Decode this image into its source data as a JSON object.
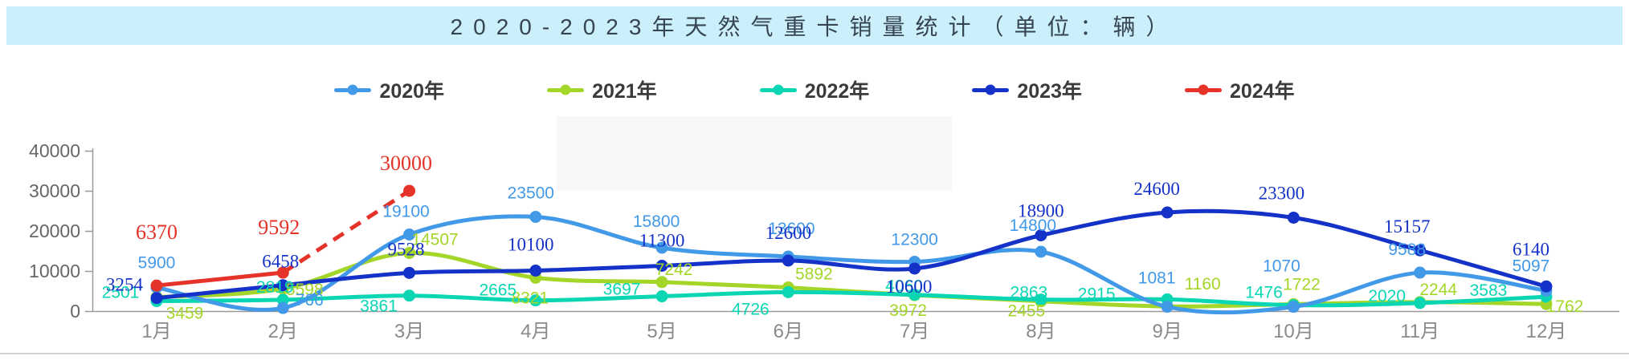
{
  "header": {
    "title": "2020-2023年天然气重卡销量统计（单位：辆）"
  },
  "chart_data": {
    "type": "line",
    "title": "2020-2023年天然气重卡销量统计（单位：辆）",
    "categories": [
      "1月",
      "2月",
      "3月",
      "4月",
      "5月",
      "6月",
      "7月",
      "8月",
      "9月",
      "10月",
      "11月",
      "12月"
    ],
    "series": [
      {
        "name": "2020年",
        "color": "#4199E8",
        "values": [
          5900,
          766,
          19100,
          23500,
          15800,
          13600,
          12300,
          14800,
          1081,
          1070,
          9588,
          5097
        ]
      },
      {
        "name": "2021年",
        "color": "#A4D629",
        "values": [
          3459,
          5598,
          14507,
          8321,
          7242,
          5892,
          3972,
          2455,
          1160,
          1722,
          2244,
          1762
        ]
      },
      {
        "name": "2022年",
        "color": "#0AD6B4",
        "values": [
          2501,
          2819,
          3861,
          2665,
          3697,
          4726,
          4060,
          2863,
          2915,
          1476,
          2020,
          3583
        ]
      },
      {
        "name": "2023年",
        "color": "#1432C8",
        "values": [
          3254,
          6458,
          9528,
          10100,
          11300,
          12600,
          10600,
          18900,
          24600,
          23300,
          15157,
          6140
        ]
      },
      {
        "name": "2024年",
        "color": "#E5332A",
        "values": [
          6370,
          9592,
          30000,
          null,
          null,
          null,
          null,
          null,
          null,
          null,
          null,
          null
        ],
        "dashed_from_index": 1
      }
    ],
    "yaxis": {
      "min": 0,
      "max": 40000,
      "tick_interval": 10000,
      "tick_labels": [
        "0",
        "10000",
        "20000",
        "30000",
        "40000"
      ]
    },
    "grid": false,
    "legend_position": "top",
    "unit": "辆"
  }
}
